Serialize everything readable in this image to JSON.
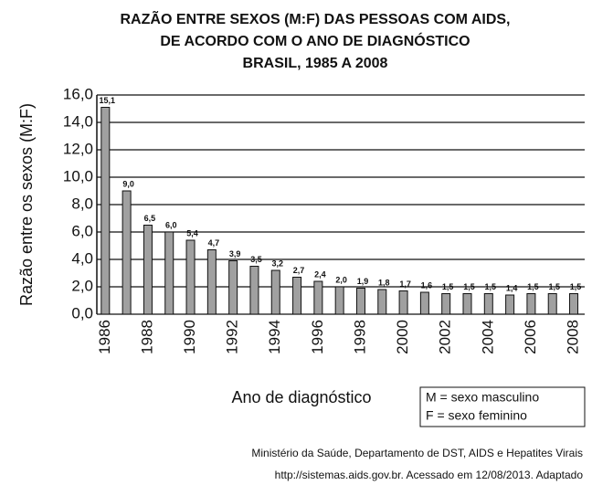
{
  "chart_data": {
    "type": "bar",
    "title": [
      "RAZÃO ENTRE SEXOS (M:F) DAS PESSOAS COM AIDS,",
      "DE ACORDO COM O ANO DE DIAGNÓSTICO",
      "BRASIL, 1985 A 2008"
    ],
    "y_label": "Razão entre os sexos (M:F)",
    "x_label": "Ano de diagnóstico",
    "legend_note": [
      "M = sexo masculino",
      "F = sexo feminino"
    ],
    "source": [
      "Ministério da Saúde, Departamento de DST, AIDS e Hepatites Virais",
      "http://sistemas.aids.gov.br. Acessado em 12/08/2013. Adaptado"
    ],
    "categories": [
      "1986",
      null,
      "1988",
      null,
      "1990",
      null,
      "1992",
      null,
      "1994",
      null,
      "1996",
      null,
      "1998",
      null,
      "2000",
      null,
      "2002",
      null,
      "2004",
      null,
      "2006",
      null,
      "2008"
    ],
    "values": [
      15.1,
      9.0,
      6.5,
      6.0,
      5.4,
      4.7,
      3.9,
      3.5,
      3.2,
      2.7,
      2.4,
      2.0,
      1.9,
      1.8,
      1.7,
      1.6,
      1.5,
      1.5,
      1.5,
      1.4,
      1.5,
      1.5,
      1.5
    ],
    "value_labels": [
      "15,1",
      "9,0",
      "6,5",
      "6,0",
      "5,4",
      "4,7",
      "3,9",
      "3,5",
      "3,2",
      "2,7",
      "2,4",
      "2,0",
      "1,9",
      "1,8",
      "1,7",
      "1,6",
      "1,5",
      "1,5",
      "1,5",
      "1,4",
      "1,5",
      "1,5",
      "1,5"
    ],
    "color": "#a0a0a0",
    "ylim": [
      0,
      16
    ],
    "yticks": [
      {
        "value": 0,
        "label": "0,0"
      },
      {
        "value": 2,
        "label": "2,0"
      },
      {
        "value": 4,
        "label": "4,0"
      },
      {
        "value": 6,
        "label": "6,0"
      },
      {
        "value": 8,
        "label": "8,0"
      },
      {
        "value": 10,
        "label": "10,0"
      },
      {
        "value": 12,
        "label": "12,0"
      },
      {
        "value": 14,
        "label": "14,0"
      },
      {
        "value": 16,
        "label": "16,0"
      }
    ],
    "grid": true
  }
}
